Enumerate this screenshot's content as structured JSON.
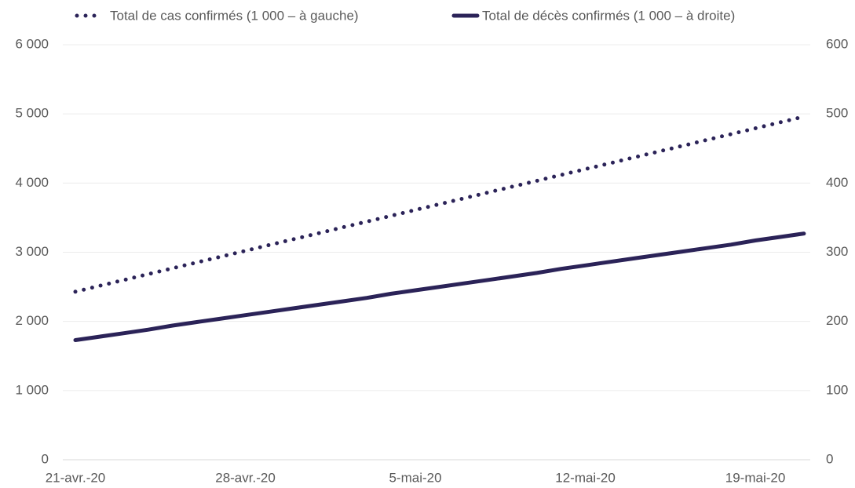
{
  "chart_data": {
    "type": "line",
    "categories": [
      "21-avr.-20",
      null,
      null,
      null,
      null,
      null,
      null,
      "28-avr.-20",
      null,
      null,
      null,
      null,
      null,
      null,
      "5-mai-20",
      null,
      null,
      null,
      null,
      null,
      null,
      "12-mai-20",
      null,
      null,
      null,
      null,
      null,
      null,
      "19-mai-20",
      null,
      null
    ],
    "series": [
      {
        "name": "Total de cas confirmés (1 000 – à gauche)",
        "color": "#2b2358",
        "dash": "dotted",
        "values": [
          2430,
          2514,
          2599,
          2683,
          2767,
          2852,
          2936,
          3020,
          3105,
          3189,
          3273,
          3358,
          3442,
          3526,
          3611,
          3695,
          3779,
          3864,
          3948,
          4032,
          4117,
          4201,
          4285,
          4370,
          4454,
          4538,
          4623,
          4707,
          4791,
          4876,
          4960
        ]
      },
      {
        "name": "Total de décès confirmés (1 000 – à droite)",
        "color": "#2b2358",
        "axis": "y2",
        "values": [
          173,
          178,
          183,
          188,
          194,
          199,
          204,
          209,
          214,
          219,
          224,
          229,
          234,
          240,
          245,
          250,
          255,
          260,
          265,
          270,
          276,
          281,
          286,
          291,
          296,
          301,
          306,
          311,
          317,
          322,
          327
        ]
      }
    ],
    "ylim": [
      0,
      6000
    ],
    "yticks": [
      0,
      {
        "value": 1000,
        "label": "1 000"
      },
      {
        "value": 2000,
        "label": "2 000"
      },
      {
        "value": 3000,
        "label": "3 000"
      },
      {
        "value": 4000,
        "label": "4 000"
      },
      {
        "value": 5000,
        "label": "5 000"
      },
      {
        "value": 6000,
        "label": "6 000"
      }
    ],
    "y2lim": [
      0,
      600
    ],
    "y2ticks": [
      0,
      100,
      200,
      300,
      400,
      500,
      600
    ],
    "grid": true,
    "legend": "top"
  }
}
